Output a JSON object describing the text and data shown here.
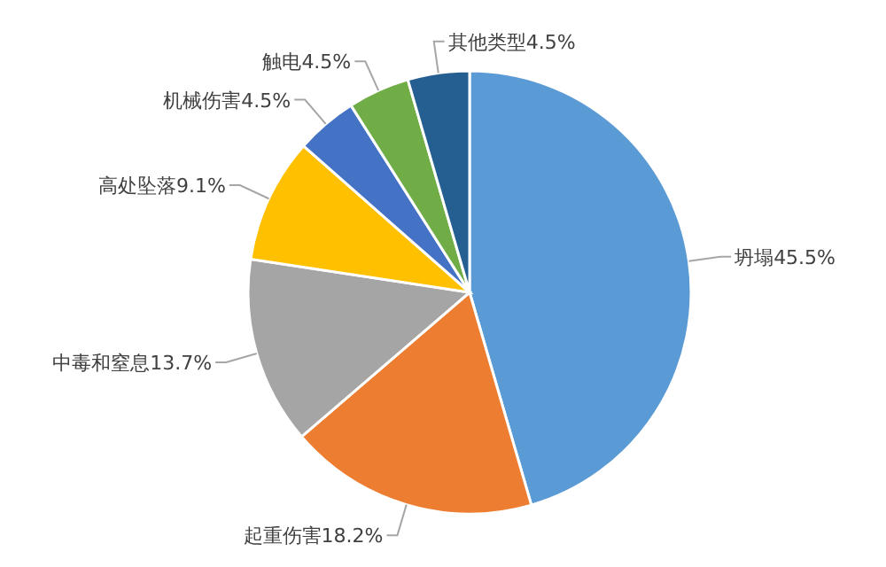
{
  "chart_data": {
    "type": "pie",
    "categories": [
      "坍塌",
      "起重伤害",
      "中毒和窒息",
      "高处坠落",
      "机械伤害",
      "触电",
      "其他类型"
    ],
    "values": [
      45.5,
      18.2,
      13.7,
      9.1,
      4.5,
      4.5,
      4.5
    ],
    "colors": [
      "#5b9bd5",
      "#ed7d31",
      "#a5a5a5",
      "#ffc000",
      "#4472c4",
      "#70ad47",
      "#255e91"
    ],
    "value_labels": [
      "45.5%",
      "18.2%",
      "13.7%",
      "9.1%",
      "4.5%",
      "4.5%",
      "4.5%"
    ]
  }
}
